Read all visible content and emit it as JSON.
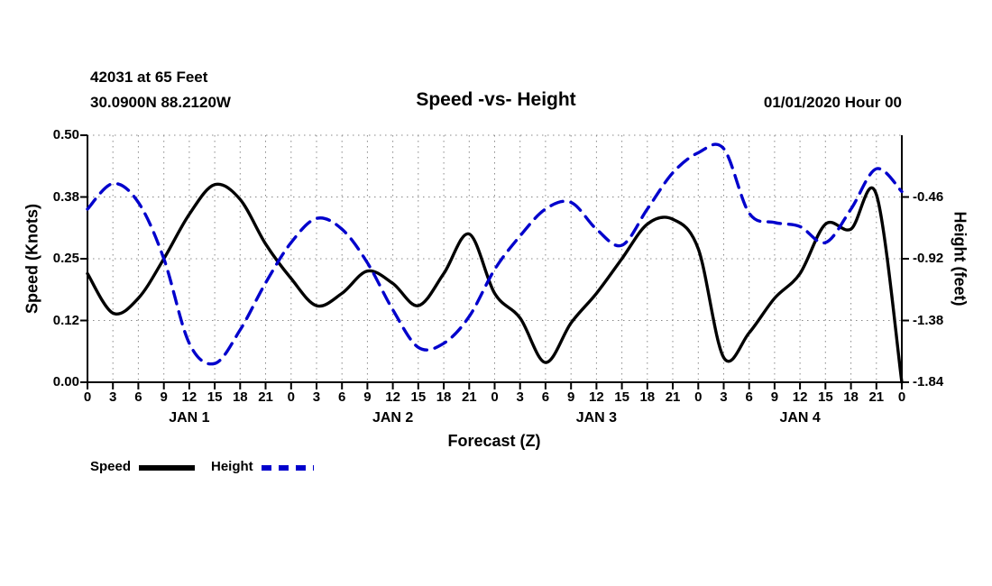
{
  "header": {
    "station": "42031 at 65 Feet",
    "coordinates": "30.0900N 88.2120W",
    "title": "Speed -vs- Height",
    "datetime": "01/01/2020 Hour 00"
  },
  "chart_data": {
    "type": "line",
    "grid": true,
    "grid_color": "#888888",
    "x_axis": {
      "label": "Forecast (Z)",
      "total_hours": 96,
      "hours": [
        0,
        3,
        6,
        9,
        12,
        15,
        18,
        21,
        24,
        27,
        30,
        33,
        36,
        39,
        42,
        45,
        48,
        51,
        54,
        57,
        60,
        63,
        66,
        69,
        72,
        75,
        78,
        81,
        84,
        87,
        90,
        93,
        96
      ],
      "hour_labels": [
        "0",
        "3",
        "6",
        "9",
        "12",
        "15",
        "18",
        "21",
        "0",
        "3",
        "6",
        "9",
        "12",
        "15",
        "18",
        "21",
        "0",
        "3",
        "6",
        "9",
        "12",
        "15",
        "18",
        "21",
        "0",
        "3",
        "6",
        "9",
        "12",
        "15",
        "18",
        "21",
        "0"
      ],
      "day_labels": [
        "JAN 1",
        "JAN 2",
        "JAN 3",
        "JAN 4"
      ]
    },
    "left_axis": {
      "label": "Speed (Knots)",
      "range": [
        0,
        0.5
      ],
      "ticks": [
        {
          "label": "0.00",
          "value": 0
        },
        {
          "label": "0.12",
          "value": 0.125
        },
        {
          "label": "0.25",
          "value": 0.25
        },
        {
          "label": "0.38",
          "value": 0.375
        },
        {
          "label": "0.50",
          "value": 0.5
        }
      ]
    },
    "right_axis": {
      "label": "Height (feet)",
      "range": [
        -1.84,
        0
      ],
      "ticks": [
        {
          "label": "-0.46",
          "value": -0.46
        },
        {
          "label": "-0.92",
          "value": -0.92
        },
        {
          "label": "-1.38",
          "value": -1.38
        },
        {
          "label": "-1.84",
          "value": -1.84
        }
      ]
    },
    "series": [
      {
        "name": "Speed",
        "axis": "left",
        "color": "#000000",
        "style": "solid",
        "values": [
          0.22,
          0.14,
          0.17,
          0.25,
          0.34,
          0.4,
          0.37,
          0.28,
          0.21,
          0.155,
          0.18,
          0.225,
          0.2,
          0.155,
          0.22,
          0.3,
          0.18,
          0.13,
          0.04,
          0.12,
          0.18,
          0.25,
          0.32,
          0.33,
          0.27,
          0.05,
          0.1,
          0.17,
          0.22,
          0.32,
          0.31,
          0.38,
          0.0
        ]
      },
      {
        "name": "Height",
        "axis": "right",
        "color": "#0000cc",
        "style": "dashed",
        "values": [
          -0.55,
          -0.36,
          -0.5,
          -0.92,
          -1.55,
          -1.7,
          -1.45,
          -1.1,
          -0.8,
          -0.62,
          -0.7,
          -0.95,
          -1.3,
          -1.58,
          -1.55,
          -1.35,
          -1.0,
          -0.75,
          -0.55,
          -0.5,
          -0.7,
          -0.82,
          -0.55,
          -0.28,
          -0.13,
          -0.1,
          -0.58,
          -0.65,
          -0.68,
          -0.8,
          -0.55,
          -0.25,
          -0.42
        ]
      }
    ],
    "legend_position": "bottom-left"
  }
}
